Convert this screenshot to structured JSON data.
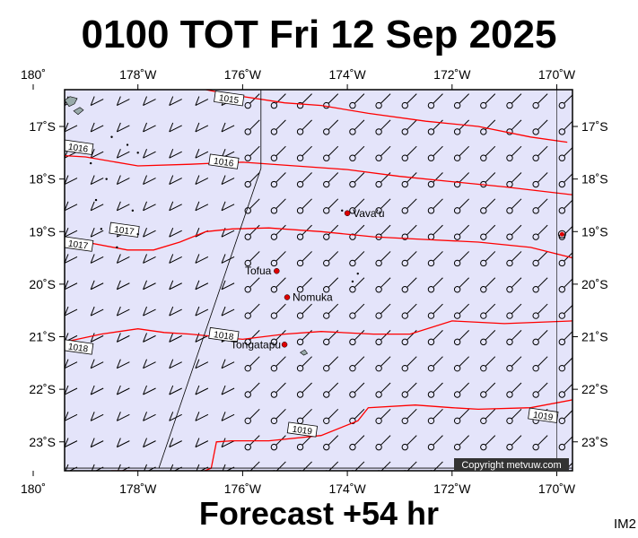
{
  "title": "0100 TOT Fri 12 Sep 2025",
  "footer": "Forecast +54 hr",
  "image_code": "IM2",
  "copyright": "Copyright metvuw.com",
  "colors": {
    "ocean": "#e4e4fa",
    "isobar": "#ff0000",
    "place_dot": "#dd0000",
    "frame": "#000000",
    "copyright_bg": "#333333"
  },
  "map": {
    "lon_min": 180.6,
    "lon_max": 190.3,
    "lat_top": -16.3,
    "lat_bottom": -23.55
  },
  "axes": {
    "lon_ticks": [
      {
        "lon": 180,
        "label": "180˚"
      },
      {
        "lon": 182,
        "label": "178˚W"
      },
      {
        "lon": 184,
        "label": "176˚W"
      },
      {
        "lon": 186,
        "label": "174˚W"
      },
      {
        "lon": 188,
        "label": "172˚W"
      },
      {
        "lon": 190,
        "label": "170˚W"
      }
    ],
    "lat_ticks": [
      {
        "lat": -17,
        "label": "17˚S"
      },
      {
        "lat": -18,
        "label": "18˚S"
      },
      {
        "lat": -19,
        "label": "19˚S"
      },
      {
        "lat": -20,
        "label": "20˚S"
      },
      {
        "lat": -21,
        "label": "21˚S"
      },
      {
        "lat": -22,
        "label": "22˚S"
      },
      {
        "lat": -23,
        "label": "23˚S"
      }
    ]
  },
  "places": [
    {
      "name": "Vava'u",
      "lon": 186.0,
      "lat": -18.65
    },
    {
      "name": "Tofua",
      "lon": 184.65,
      "lat": -19.75
    },
    {
      "name": "Nomuka",
      "lon": 184.85,
      "lat": -20.25
    },
    {
      "name": "Tongatapu",
      "lon": 184.8,
      "lat": -21.15
    }
  ],
  "isobars": [
    {
      "value": "1015",
      "label_at": [
        183.5,
        -16.45
      ],
      "points": [
        [
          183.3,
          -16.3
        ],
        [
          183.8,
          -16.4
        ],
        [
          184.8,
          -16.55
        ],
        [
          185.5,
          -16.6
        ],
        [
          186.4,
          -16.75
        ],
        [
          187.5,
          -16.9
        ],
        [
          188.5,
          -17.0
        ],
        [
          189.5,
          -17.2
        ],
        [
          190.2,
          -17.3
        ]
      ]
    },
    {
      "value": "1016",
      "label_at": [
        183.4,
        -17.65
      ],
      "points": [
        [
          180.5,
          -17.55
        ],
        [
          181.0,
          -17.58
        ],
        [
          182.0,
          -17.75
        ],
        [
          183.0,
          -17.72
        ],
        [
          183.4,
          -17.7
        ],
        [
          184.0,
          -17.68
        ],
        [
          185.0,
          -17.75
        ],
        [
          186.0,
          -17.82
        ],
        [
          187.0,
          -17.95
        ],
        [
          188.0,
          -18.05
        ],
        [
          189.0,
          -18.15
        ],
        [
          190.3,
          -18.3
        ]
      ]
    },
    {
      "value": "1016",
      "label_at": [
        180.62,
        -17.38
      ],
      "points": []
    },
    {
      "value": "1017",
      "label_at": [
        181.5,
        -18.95
      ],
      "points": [
        [
          180.6,
          -19.15
        ],
        [
          181.0,
          -19.2
        ],
        [
          181.8,
          -19.35
        ],
        [
          182.3,
          -19.35
        ],
        [
          182.8,
          -19.2
        ],
        [
          183.3,
          -19.0
        ],
        [
          183.8,
          -18.95
        ],
        [
          184.5,
          -18.93
        ],
        [
          185.5,
          -19.0
        ],
        [
          186.5,
          -19.1
        ],
        [
          187.5,
          -19.15
        ],
        [
          188.5,
          -19.2
        ],
        [
          189.5,
          -19.3
        ],
        [
          190.3,
          -19.5
        ]
      ]
    },
    {
      "value": "1017",
      "label_at": [
        180.62,
        -19.22
      ],
      "points": []
    },
    {
      "value": "1018",
      "label_at": [
        183.4,
        -20.95
      ],
      "points": [
        [
          180.6,
          -21.1
        ],
        [
          181.3,
          -20.95
        ],
        [
          182.0,
          -20.85
        ],
        [
          182.5,
          -20.92
        ],
        [
          183.0,
          -20.95
        ],
        [
          183.5,
          -21.0
        ],
        [
          184.0,
          -21.05
        ],
        [
          184.8,
          -20.95
        ],
        [
          185.5,
          -20.9
        ],
        [
          186.5,
          -20.95
        ],
        [
          187.2,
          -20.95
        ],
        [
          188.0,
          -20.7
        ],
        [
          189.0,
          -20.75
        ],
        [
          190.3,
          -20.7
        ]
      ]
    },
    {
      "value": "1018",
      "label_at": [
        180.62,
        -21.18
      ],
      "points": []
    },
    {
      "value": "1019",
      "label_at": [
        184.9,
        -22.75
      ],
      "points": [
        [
          180.9,
          -23.7
        ],
        [
          181.5,
          -23.55
        ],
        [
          182.0,
          -23.55
        ],
        [
          182.5,
          -23.6
        ],
        [
          182.9,
          -23.7
        ],
        [
          183.4,
          -23.5
        ],
        [
          183.5,
          -23.0
        ],
        [
          183.8,
          -22.98
        ],
        [
          184.5,
          -22.98
        ],
        [
          185.5,
          -22.88
        ],
        [
          186.2,
          -22.6
        ],
        [
          186.4,
          -22.35
        ],
        [
          187.3,
          -22.3
        ],
        [
          188.0,
          -22.35
        ],
        [
          188.5,
          -22.38
        ],
        [
          189.5,
          -22.35
        ],
        [
          190.3,
          -22.2
        ]
      ]
    },
    {
      "value": "1019",
      "label_at": [
        189.5,
        -22.48
      ],
      "points": []
    }
  ],
  "track_line": [
    [
      184.35,
      -17.8
    ],
    [
      182.4,
      -23.5
    ]
  ],
  "meridian_line": [
    184.35,
    -16.3,
    184.35,
    -17.8
  ],
  "wind_grid": {
    "lon_start": 180.6,
    "lon_step": 0.5,
    "lon_end": 190.3,
    "lat_start": -16.6,
    "lat_step": 0.5,
    "lat_end": -23.6,
    "calm_lon_from": 183.9
  },
  "land": [
    {
      "name": "fiji-islands",
      "lon": 180.7,
      "lat": -16.6
    },
    {
      "name": "lau-islands",
      "lon": 181.6,
      "lat": -17.7
    },
    {
      "name": "niuafo-edge",
      "lon": 190.1,
      "lat": -19.05
    }
  ]
}
